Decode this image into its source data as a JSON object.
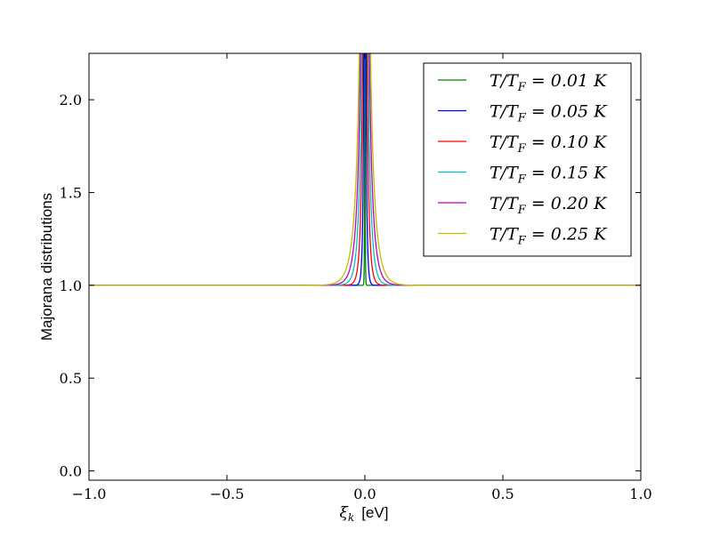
{
  "chart_data": {
    "type": "line",
    "title": "",
    "xlabel": "ξ_k  [eV]",
    "xlabel_main": "ξ",
    "xlabel_sub": "k",
    "xlabel_unit": "[eV]",
    "ylabel": "Majorana distributions",
    "xlim": [
      -1.0,
      1.0
    ],
    "ylim": [
      -0.05,
      2.25
    ],
    "x_ticks": [
      -1.0,
      -0.5,
      0.0,
      0.5,
      1.0
    ],
    "x_tick_labels": [
      "−1.0",
      "−0.5",
      "0.0",
      "0.5",
      "1.0"
    ],
    "y_ticks": [
      0.0,
      0.5,
      1.0,
      1.5,
      2.0
    ],
    "y_tick_labels": [
      "0.0",
      "0.5",
      "1.0",
      "1.5",
      "2.0"
    ],
    "grid": false,
    "legend_position": "top-right",
    "series": [
      {
        "name": "T/T_F = 0.01 K",
        "color": "#008000",
        "T": 0.01
      },
      {
        "name": "T/T_F = 0.05 K",
        "color": "#0000ff",
        "T": 0.05
      },
      {
        "name": "T/T_F = 0.10 K",
        "color": "#ff0000",
        "T": 0.1
      },
      {
        "name": "T/T_F = 0.15 K",
        "color": "#00bfbf",
        "T": 0.15
      },
      {
        "name": "T/T_F = 0.20 K",
        "color": "#bf00bf",
        "T": 0.2
      },
      {
        "name": "T/T_F = 0.25 K",
        "color": "#bfbf00",
        "T": 0.25
      }
    ],
    "legend_labels": [
      {
        "lhs": "T/T",
        "sub": "F",
        "rhs": " = 0.01 K"
      },
      {
        "lhs": "T/T",
        "sub": "F",
        "rhs": " = 0.05 K"
      },
      {
        "lhs": "T/T",
        "sub": "F",
        "rhs": " = 0.10 K"
      },
      {
        "lhs": "T/T",
        "sub": "F",
        "rhs": " = 0.15 K"
      },
      {
        "lhs": "T/T",
        "sub": "F",
        "rhs": " = 0.20 K"
      },
      {
        "lhs": "T/T",
        "sub": "F",
        "rhs": " = 0.25 K"
      }
    ]
  }
}
